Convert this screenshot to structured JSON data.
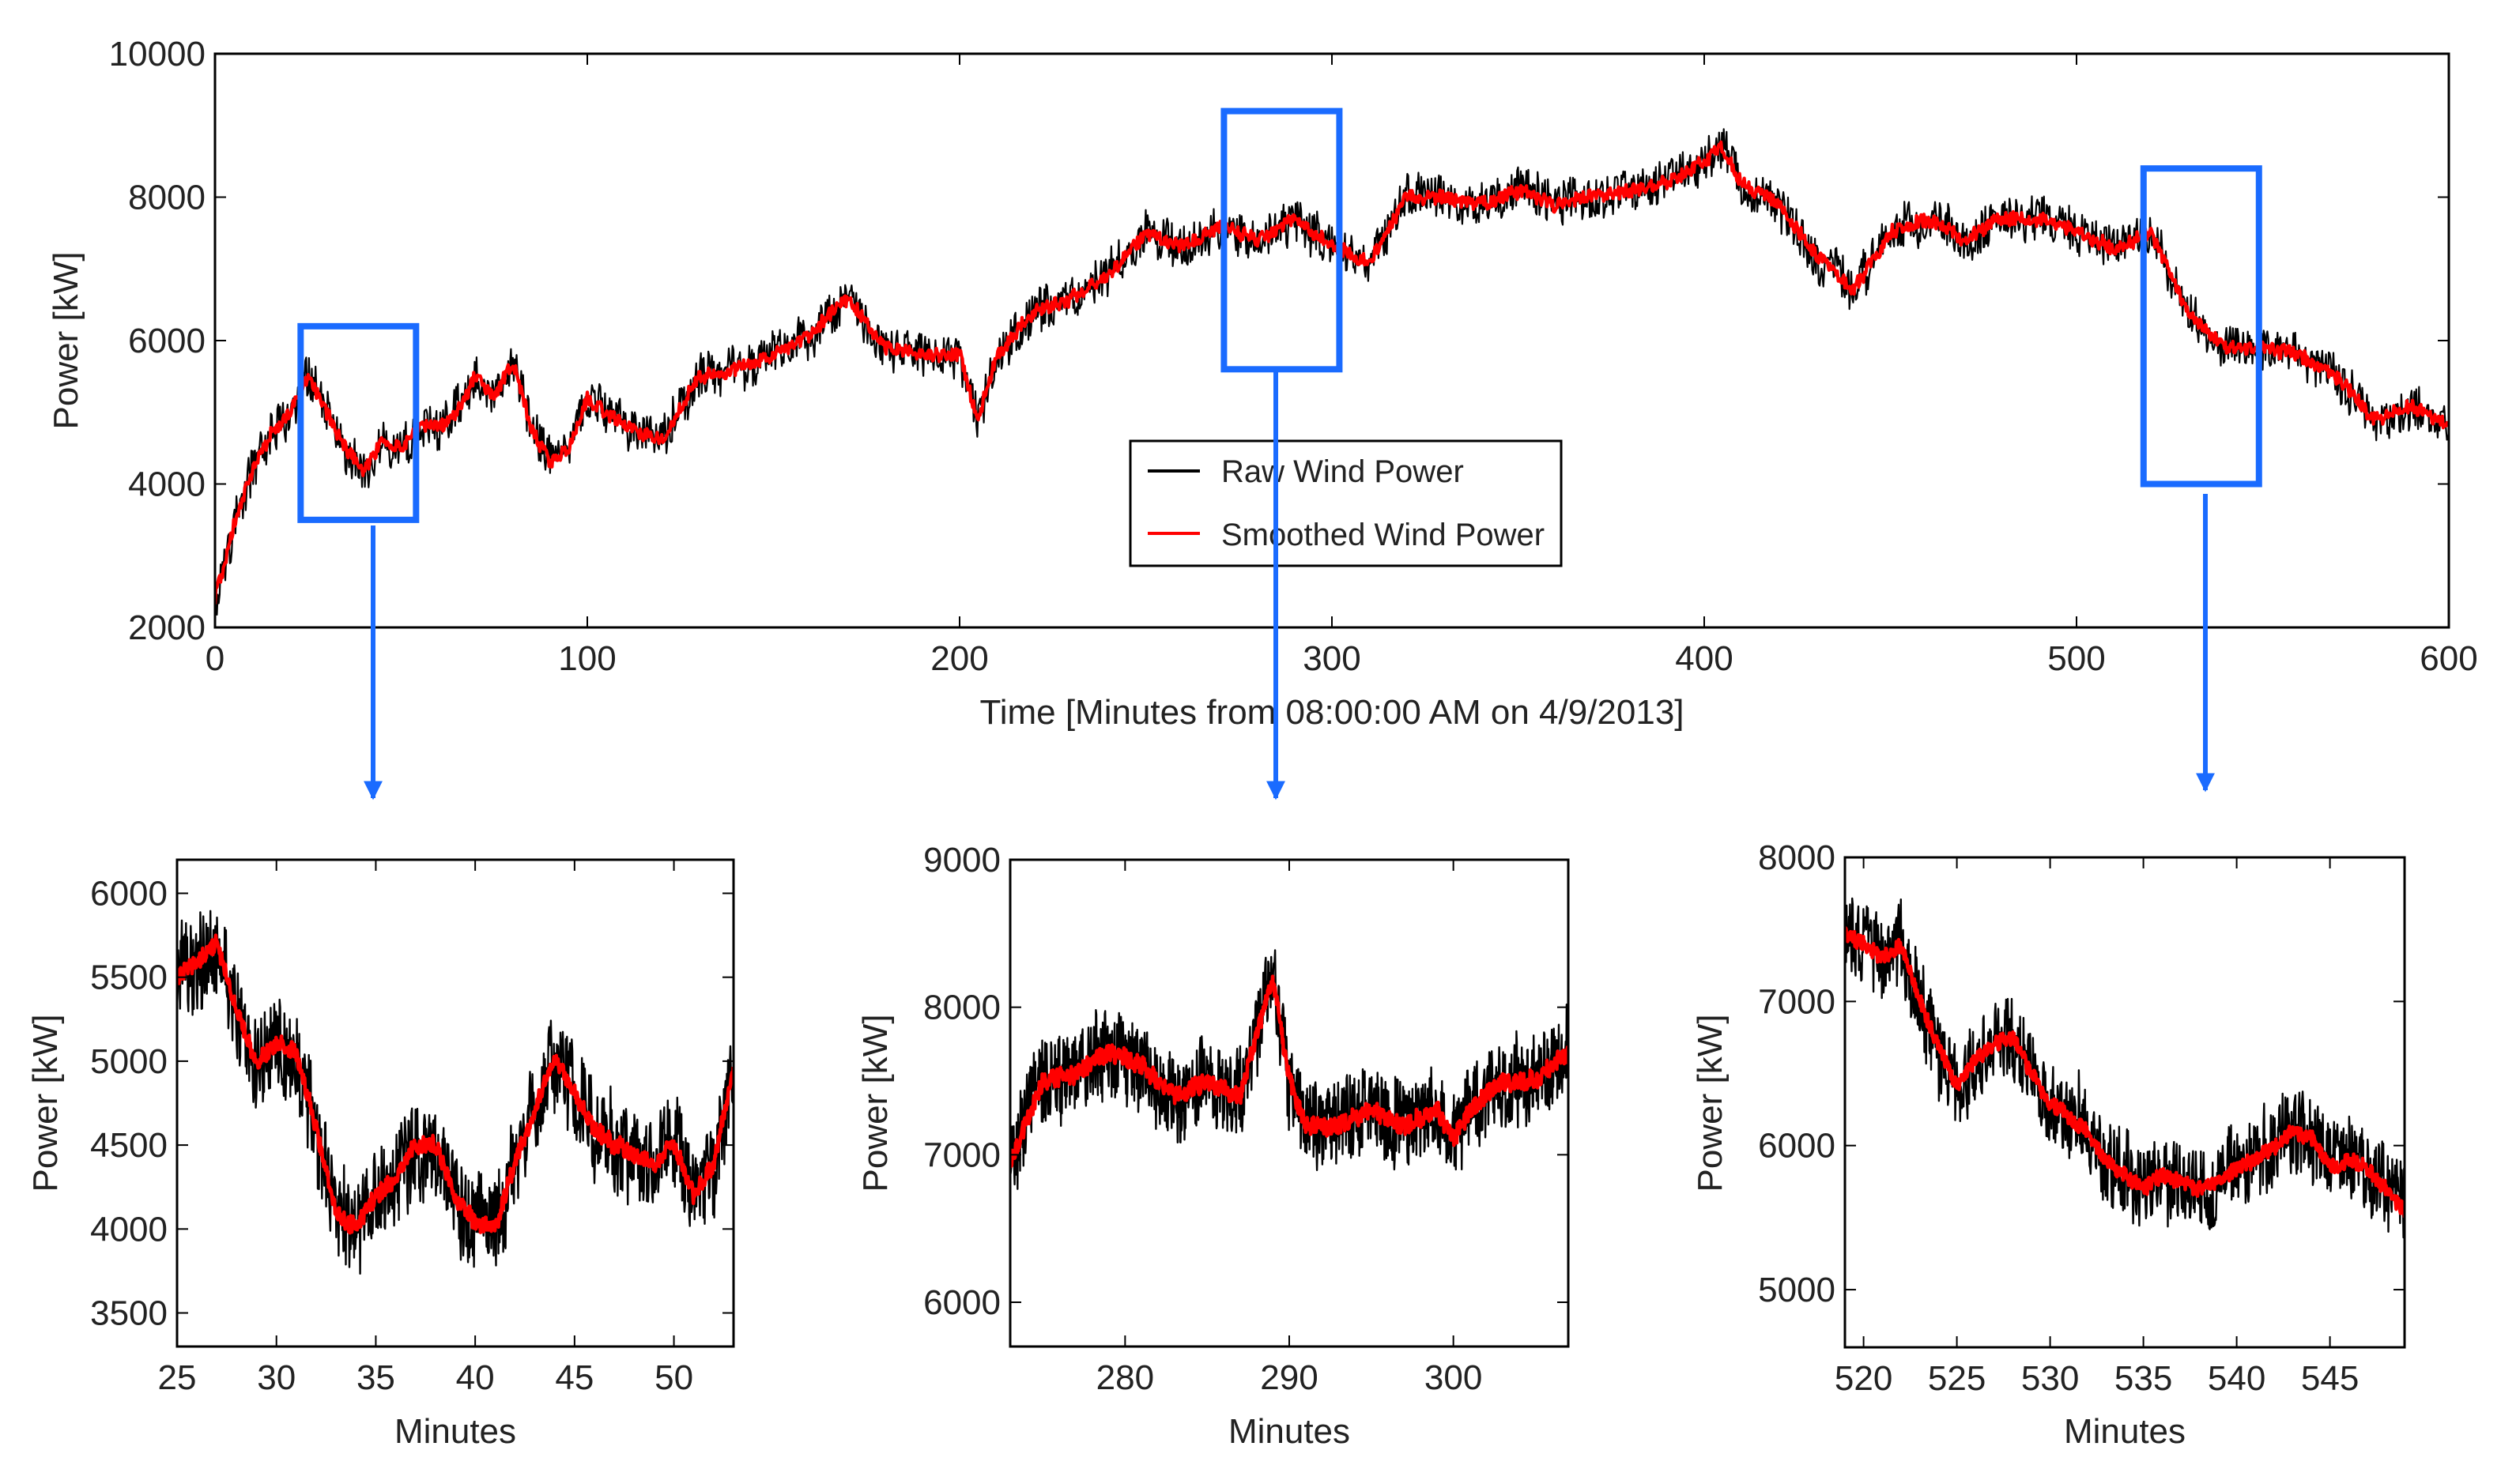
{
  "figure": {
    "colors": {
      "raw": "#000000",
      "smoothed": "#ff0000",
      "highlight": "#1a6bff",
      "axis": "#000000"
    }
  },
  "chart_data": [
    {
      "id": "main",
      "type": "line",
      "title": "",
      "xlabel": "Time [Minutes from 08:00:00 AM on 4/9/2013]",
      "ylabel": "Power [kW]",
      "xlim": [
        0,
        600
      ],
      "ylim": [
        2000,
        10000
      ],
      "xticks": [
        0,
        100,
        200,
        300,
        400,
        500,
        600
      ],
      "yticks": [
        2000,
        4000,
        6000,
        8000,
        10000
      ],
      "legend": {
        "placement": "center",
        "entries": [
          "Raw Wind Power",
          "Smoothed Wind Power"
        ]
      },
      "series": [
        {
          "name": "Raw Wind Power",
          "color": "#000000",
          "noise": 350,
          "x": [
            0,
            5,
            10,
            15,
            20,
            25,
            30,
            35,
            40,
            45,
            50,
            55,
            60,
            65,
            70,
            75,
            80,
            85,
            90,
            95,
            100,
            110,
            120,
            130,
            140,
            150,
            160,
            170,
            180,
            190,
            200,
            205,
            210,
            220,
            230,
            240,
            250,
            260,
            270,
            280,
            290,
            300,
            310,
            320,
            330,
            340,
            350,
            360,
            370,
            380,
            390,
            400,
            405,
            410,
            420,
            430,
            440,
            450,
            460,
            470,
            480,
            490,
            500,
            510,
            520,
            530,
            540,
            550,
            560,
            570,
            580,
            590,
            600
          ],
          "y": [
            2400,
            3400,
            4200,
            4700,
            5000,
            5500,
            5000,
            4500,
            4200,
            4600,
            4500,
            4800,
            4800,
            5000,
            5500,
            5200,
            5700,
            4800,
            4300,
            4500,
            5200,
            4800,
            4600,
            5500,
            5600,
            5800,
            6100,
            6600,
            5900,
            5800,
            5800,
            4900,
            5800,
            6400,
            6600,
            6900,
            7500,
            7300,
            7600,
            7400,
            7700,
            7300,
            7100,
            8000,
            8000,
            7900,
            8100,
            7900,
            8000,
            8100,
            8200,
            8500,
            8700,
            8200,
            7900,
            7200,
            6700,
            7500,
            7700,
            7400,
            7700,
            7700,
            7500,
            7300,
            7500,
            6400,
            5900,
            5900,
            5800,
            5500,
            4900,
            5100,
            4800
          ]
        },
        {
          "name": "Smoothed Wind Power",
          "color": "#ff0000",
          "noise": 110,
          "x": [
            0,
            5,
            10,
            15,
            20,
            25,
            30,
            35,
            40,
            45,
            50,
            55,
            60,
            65,
            70,
            75,
            80,
            85,
            90,
            95,
            100,
            110,
            120,
            130,
            140,
            150,
            160,
            170,
            180,
            190,
            200,
            205,
            210,
            220,
            230,
            240,
            250,
            260,
            270,
            280,
            290,
            300,
            310,
            320,
            330,
            340,
            350,
            360,
            370,
            380,
            390,
            400,
            405,
            410,
            420,
            430,
            440,
            450,
            460,
            470,
            480,
            490,
            500,
            510,
            520,
            530,
            540,
            550,
            560,
            570,
            580,
            590,
            600
          ],
          "y": [
            2400,
            3400,
            4200,
            4700,
            5000,
            5500,
            5000,
            4500,
            4200,
            4600,
            4500,
            4800,
            4800,
            5000,
            5500,
            5200,
            5700,
            4800,
            4300,
            4500,
            5200,
            4800,
            4600,
            5500,
            5600,
            5800,
            6100,
            6600,
            5900,
            5800,
            5800,
            4900,
            5800,
            6400,
            6600,
            6900,
            7500,
            7300,
            7600,
            7400,
            7700,
            7300,
            7100,
            8000,
            8000,
            7900,
            8100,
            7900,
            8000,
            8100,
            8200,
            8500,
            8700,
            8200,
            7900,
            7200,
            6700,
            7500,
            7700,
            7400,
            7700,
            7700,
            7500,
            7300,
            7500,
            6400,
            5900,
            5900,
            5800,
            5500,
            4900,
            5100,
            4800
          ]
        }
      ],
      "highlights": [
        {
          "x": [
            23,
            54
          ],
          "y": [
            3500,
            6200
          ]
        },
        {
          "x": [
            271,
            302
          ],
          "y": [
            5600,
            9200
          ]
        },
        {
          "x": [
            518,
            549
          ],
          "y": [
            4000,
            8400
          ]
        }
      ]
    },
    {
      "id": "zoom1",
      "type": "line",
      "title": "",
      "xlabel": "Minutes",
      "ylabel": "Power [kW]",
      "xlim": [
        25,
        53
      ],
      "ylim": [
        3300,
        6200
      ],
      "xticks": [
        25,
        30,
        35,
        40,
        45,
        50
      ],
      "yticks": [
        3500,
        4000,
        4500,
        5000,
        5500,
        6000
      ],
      "series": [
        {
          "name": "Raw Wind Power",
          "color": "#000000",
          "noise": 320,
          "x": [
            25,
            26,
            27,
            28,
            29,
            30,
            31,
            32,
            33,
            34,
            35,
            36,
            37,
            38,
            39,
            40,
            41,
            42,
            43,
            44,
            45,
            46,
            47,
            48,
            49,
            50,
            51,
            52,
            53
          ],
          "y": [
            5500,
            5600,
            5700,
            5300,
            5000,
            5100,
            5050,
            4600,
            4100,
            4000,
            4200,
            4300,
            4500,
            4500,
            4200,
            4050,
            4000,
            4400,
            4700,
            5050,
            4800,
            4600,
            4500,
            4450,
            4400,
            4500,
            4200,
            4400,
            4950
          ]
        },
        {
          "name": "Smoothed Wind Power",
          "color": "#ff0000",
          "noise": 60,
          "x": [
            25,
            26,
            27,
            28,
            29,
            30,
            31,
            32,
            33,
            34,
            35,
            36,
            37,
            38,
            39,
            40,
            41,
            42,
            43,
            44,
            45,
            46,
            47,
            48,
            49,
            50,
            51,
            52,
            53
          ],
          "y": [
            5500,
            5600,
            5700,
            5300,
            5000,
            5100,
            5050,
            4600,
            4100,
            4000,
            4200,
            4300,
            4500,
            4500,
            4200,
            4050,
            4000,
            4400,
            4700,
            5050,
            4800,
            4600,
            4500,
            4450,
            4400,
            4500,
            4200,
            4400,
            4950
          ]
        }
      ]
    },
    {
      "id": "zoom2",
      "type": "line",
      "title": "",
      "xlabel": "Minutes",
      "ylabel": "Power [kW]",
      "xlim": [
        273,
        307
      ],
      "ylim": [
        5700,
        9000
      ],
      "xticks": [
        280,
        290,
        300
      ],
      "yticks": [
        6000,
        7000,
        8000,
        9000
      ],
      "series": [
        {
          "name": "Raw Wind Power",
          "color": "#000000",
          "noise": 330,
          "x": [
            273,
            275,
            277,
            279,
            281,
            283,
            285,
            287,
            288,
            289,
            290,
            291,
            293,
            295,
            297,
            299,
            300,
            301,
            303,
            305,
            307
          ],
          "y": [
            6950,
            7500,
            7550,
            7700,
            7600,
            7400,
            7500,
            7400,
            7800,
            8200,
            7500,
            7200,
            7200,
            7300,
            7200,
            7300,
            7100,
            7300,
            7500,
            7500,
            7700
          ]
        },
        {
          "name": "Smoothed Wind Power",
          "color": "#ff0000",
          "noise": 70,
          "x": [
            273,
            275,
            277,
            279,
            281,
            283,
            285,
            287,
            288,
            289,
            290,
            291,
            293,
            295,
            297,
            299,
            300,
            301,
            303,
            305,
            307
          ],
          "y": [
            6950,
            7500,
            7550,
            7700,
            7600,
            7400,
            7500,
            7400,
            7800,
            8200,
            7500,
            7200,
            7200,
            7300,
            7200,
            7300,
            7100,
            7300,
            7500,
            7500,
            7700
          ]
        }
      ]
    },
    {
      "id": "zoom3",
      "type": "line",
      "title": "",
      "xlabel": "Minutes",
      "ylabel": "Power [kW]",
      "xlim": [
        519,
        549
      ],
      "ylim": [
        4600,
        8000
      ],
      "xticks": [
        520,
        525,
        530,
        535,
        540,
        545
      ],
      "yticks": [
        5000,
        6000,
        7000,
        8000
      ],
      "series": [
        {
          "name": "Raw Wind Power",
          "color": "#000000",
          "noise": 330,
          "x": [
            519,
            520,
            521,
            522,
            523,
            524,
            525,
            526,
            527,
            528,
            529,
            530,
            531,
            532,
            533,
            534,
            535,
            536,
            537,
            538,
            539,
            540,
            541,
            542,
            543,
            544,
            545,
            546,
            547,
            548,
            549
          ],
          "y": [
            7450,
            7400,
            7300,
            7400,
            7000,
            6700,
            6400,
            6600,
            6700,
            6750,
            6500,
            6300,
            6200,
            6100,
            5900,
            5800,
            5700,
            5800,
            5750,
            5700,
            5750,
            5850,
            5900,
            6000,
            6100,
            6050,
            5850,
            5900,
            5850,
            5700,
            5550
          ]
        },
        {
          "name": "Smoothed Wind Power",
          "color": "#ff0000",
          "noise": 60,
          "x": [
            519,
            520,
            521,
            522,
            523,
            524,
            525,
            526,
            527,
            528,
            529,
            530,
            531,
            532,
            533,
            534,
            535,
            536,
            537,
            538,
            539,
            540,
            541,
            542,
            543,
            544,
            545,
            546,
            547,
            548,
            549
          ],
          "y": [
            7450,
            7400,
            7300,
            7400,
            7000,
            6700,
            6400,
            6600,
            6700,
            6750,
            6500,
            6300,
            6200,
            6100,
            5900,
            5800,
            5700,
            5800,
            5750,
            5700,
            5750,
            5850,
            5900,
            6000,
            6100,
            6050,
            5850,
            5900,
            5850,
            5700,
            5550
          ]
        }
      ]
    }
  ]
}
